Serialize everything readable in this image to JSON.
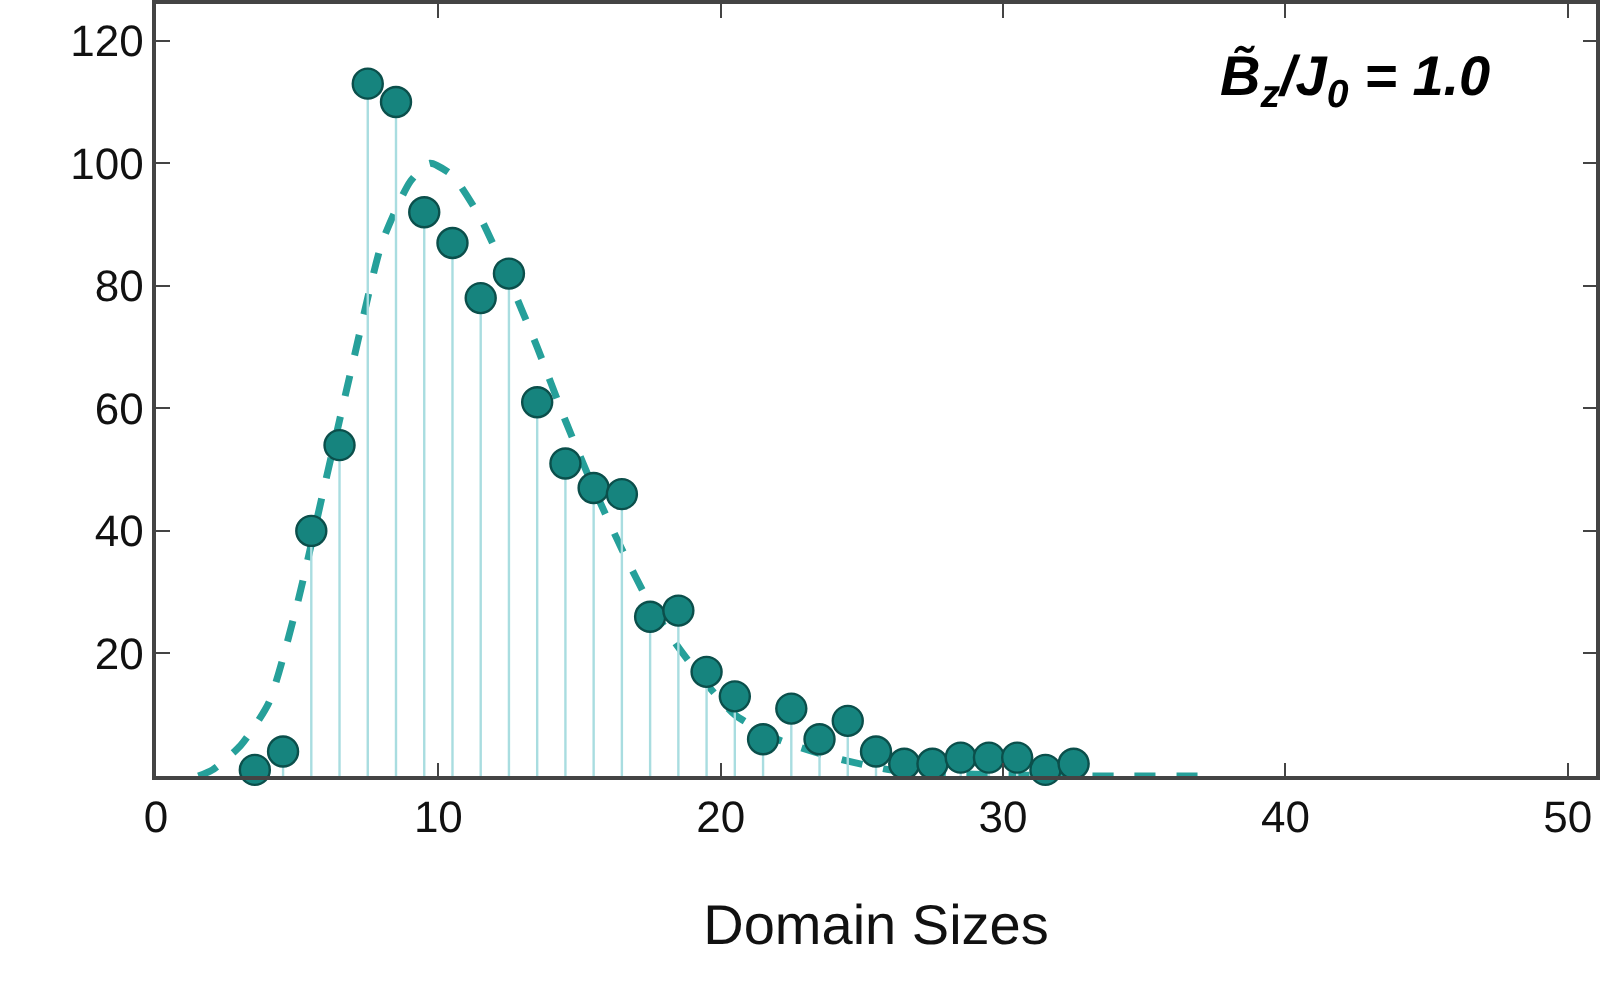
{
  "chart_data": {
    "type": "lollipop",
    "xlabel": "Domain Sizes",
    "xlim": [
      0,
      51
    ],
    "ylim": [
      0,
      126
    ],
    "xticks": [
      0,
      10,
      20,
      30,
      40,
      50
    ],
    "yticks": [
      20,
      40,
      60,
      80,
      100,
      120
    ],
    "grid": false,
    "marker": "circle",
    "annotations": [
      "B̃$_{z}$/J$_{0}$ = 1.0"
    ],
    "series": [
      {
        "color": "#16847e",
        "x": [
          3.5,
          4.5,
          5.5,
          6.5,
          7.5,
          8.5,
          9.5,
          10.5,
          11.5,
          12.5,
          13.5,
          14.5,
          15.5,
          16.5,
          17.5,
          18.5,
          19.5,
          20.5,
          21.5,
          22.5,
          23.5,
          24.5,
          25.5,
          26.5,
          27.5,
          28.5,
          29.5,
          30.5,
          31.5,
          32.5
        ],
        "values": [
          1,
          4,
          40,
          54,
          113,
          110,
          92,
          87,
          78,
          82,
          61,
          51,
          47,
          46,
          26,
          27,
          17,
          13,
          6,
          11,
          6,
          9,
          4,
          2,
          2,
          3,
          3,
          3,
          1,
          2
        ]
      },
      {
        "type": "line",
        "color": "#26a09a",
        "line_style": "dashed",
        "marker": "none",
        "x": [
          1.5,
          2,
          3,
          4,
          5,
          6,
          7,
          8,
          9,
          9.7,
          10.5,
          11.5,
          12.5,
          13.5,
          14.5,
          15.5,
          16.5,
          17.5,
          18.5,
          19.5,
          20.5,
          22,
          24,
          26,
          28,
          30,
          33,
          37
        ],
        "values": [
          0,
          1,
          5,
          12,
          28,
          48,
          68,
          87,
          97,
          100,
          98,
          91,
          81,
          70,
          58,
          47,
          37,
          28,
          21,
          15,
          10,
          6,
          3,
          1,
          0.4,
          0.2,
          0,
          0
        ]
      }
    ]
  }
}
